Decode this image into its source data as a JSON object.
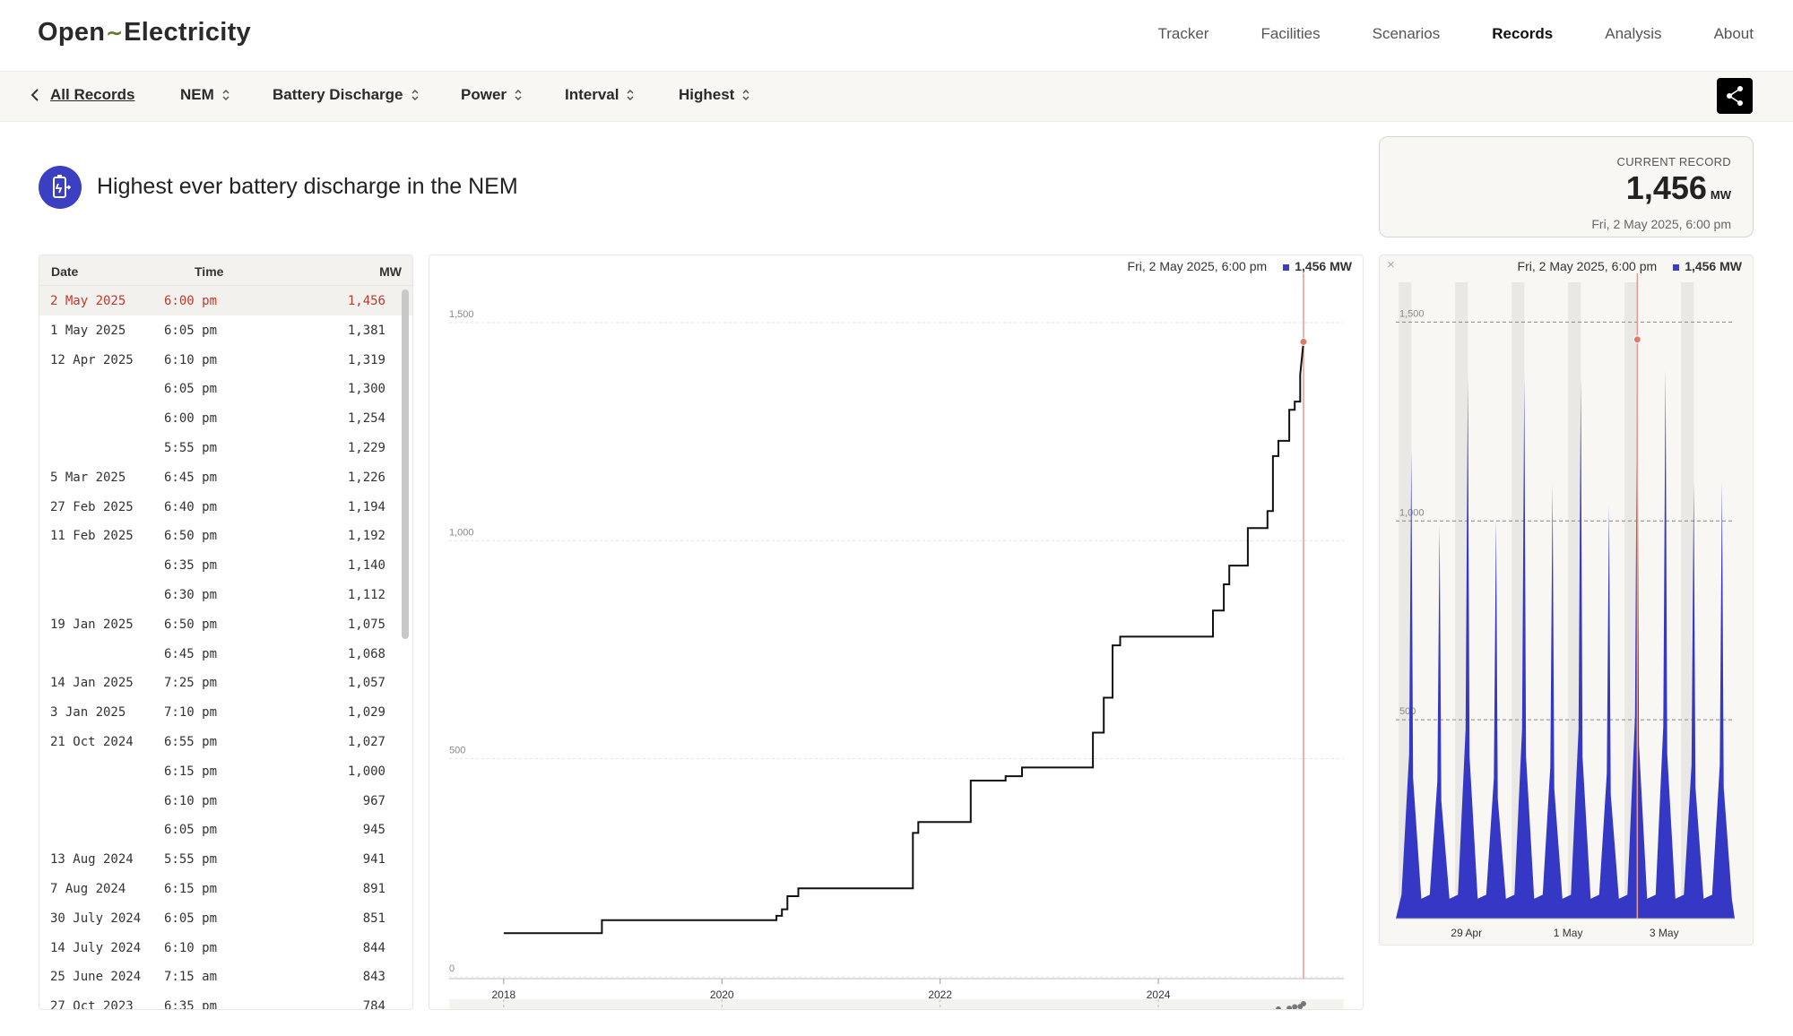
{
  "nav": {
    "logo_left": "Open",
    "logo_right": "Electricity",
    "links": [
      "Tracker",
      "Facilities",
      "Scenarios",
      "Records",
      "Analysis",
      "About"
    ],
    "active": "Records"
  },
  "filters": {
    "back_label": "All Records",
    "region": "NEM",
    "fueltech": "Battery Discharge",
    "metric": "Power",
    "period": "Interval",
    "aggregate": "Highest"
  },
  "header": {
    "title": "Highest ever battery discharge in the NEM",
    "current_label": "CURRENT RECORD",
    "current_value": "1,456",
    "current_unit": "MW",
    "current_date": "Fri, 2 May 2025, 6:00 pm"
  },
  "table": {
    "columns": [
      "Date",
      "Time",
      "MW"
    ],
    "rows": [
      {
        "date": "2 May 2025",
        "time": "6:00 pm",
        "mw": "1,456"
      },
      {
        "date": "1 May 2025",
        "time": "6:05 pm",
        "mw": "1,381"
      },
      {
        "date": "12 Apr 2025",
        "time": "6:10 pm",
        "mw": "1,319"
      },
      {
        "date": "",
        "time": "6:05 pm",
        "mw": "1,300"
      },
      {
        "date": "",
        "time": "6:00 pm",
        "mw": "1,254"
      },
      {
        "date": "",
        "time": "5:55 pm",
        "mw": "1,229"
      },
      {
        "date": "5 Mar 2025",
        "time": "6:45 pm",
        "mw": "1,226"
      },
      {
        "date": "27 Feb 2025",
        "time": "6:40 pm",
        "mw": "1,194"
      },
      {
        "date": "11 Feb 2025",
        "time": "6:50 pm",
        "mw": "1,192"
      },
      {
        "date": "",
        "time": "6:35 pm",
        "mw": "1,140"
      },
      {
        "date": "",
        "time": "6:30 pm",
        "mw": "1,112"
      },
      {
        "date": "19 Jan 2025",
        "time": "6:50 pm",
        "mw": "1,075"
      },
      {
        "date": "",
        "time": "6:45 pm",
        "mw": "1,068"
      },
      {
        "date": "14 Jan 2025",
        "time": "7:25 pm",
        "mw": "1,057"
      },
      {
        "date": "3 Jan 2025",
        "time": "7:10 pm",
        "mw": "1,029"
      },
      {
        "date": "21 Oct 2024",
        "time": "6:55 pm",
        "mw": "1,027"
      },
      {
        "date": "",
        "time": "6:15 pm",
        "mw": "1,000"
      },
      {
        "date": "",
        "time": "6:10 pm",
        "mw": "967"
      },
      {
        "date": "",
        "time": "6:05 pm",
        "mw": "945"
      },
      {
        "date": "13 Aug 2024",
        "time": "5:55 pm",
        "mw": "941"
      },
      {
        "date": "7 Aug 2024",
        "time": "6:15 pm",
        "mw": "891"
      },
      {
        "date": "30 July 2024",
        "time": "6:05 pm",
        "mw": "851"
      },
      {
        "date": "14 July 2024",
        "time": "6:10 pm",
        "mw": "844"
      },
      {
        "date": "25 June 2024",
        "time": "7:15 am",
        "mw": "843"
      },
      {
        "date": "27 Oct 2023",
        "time": "6:35 pm",
        "mw": "784"
      }
    ]
  },
  "main_chart": {
    "tooltip_date": "Fri, 2 May 2025, 6:00 pm",
    "tooltip_value": "1,456 MW"
  },
  "side_chart": {
    "tooltip_date": "Fri, 2 May 2025, 6:00 pm",
    "tooltip_value": "1,456 MW"
  },
  "chart_data": [
    {
      "type": "line",
      "step": true,
      "ylim": [
        0,
        1500
      ],
      "yticks": [
        "0",
        "500",
        "1,000",
        "1,500"
      ],
      "xlim": [
        2017.5,
        2025.7
      ],
      "xticks": [
        "2018",
        "2020",
        "2022",
        "2024"
      ],
      "x": [
        2018.0,
        2018.9,
        2018.9,
        2020.5,
        2020.5,
        2020.55,
        2020.55,
        2020.6,
        2020.6,
        2020.7,
        2020.7,
        2021.75,
        2021.75,
        2021.8,
        2021.8,
        2022.28,
        2022.28,
        2022.6,
        2022.6,
        2022.75,
        2022.75,
        2023.4,
        2023.4,
        2023.5,
        2023.5,
        2023.58,
        2023.58,
        2023.65,
        2023.65,
        2024.5,
        2024.5,
        2024.6,
        2024.6,
        2024.65,
        2024.65,
        2024.82,
        2024.82,
        2025.0,
        2025.0,
        2025.05,
        2025.05,
        2025.1,
        2025.1,
        2025.2,
        2025.2,
        2025.25,
        2025.25,
        2025.3,
        2025.3,
        2025.33
      ],
      "y": [
        100,
        100,
        130,
        130,
        140,
        140,
        155,
        155,
        185,
        185,
        203,
        203,
        330,
        330,
        355,
        355,
        450,
        450,
        460,
        460,
        480,
        480,
        560,
        560,
        640,
        640,
        760,
        760,
        780,
        780,
        840,
        840,
        900,
        900,
        943,
        943,
        1029,
        1029,
        1068,
        1068,
        1194,
        1194,
        1229,
        1229,
        1300,
        1300,
        1319,
        1319,
        1381,
        1456
      ],
      "record": {
        "x": 2025.33,
        "y": 1456
      }
    },
    {
      "type": "area",
      "ylim": [
        0,
        1600
      ],
      "yticks": [
        "500",
        "1,000",
        "1,500"
      ],
      "xticks": [
        "29 Apr",
        "1 May",
        "3 May"
      ],
      "peaks": [
        1180,
        990,
        1360,
        1005,
        1360,
        1090,
        1360,
        1040,
        1456,
        1380,
        1100,
        1100
      ],
      "record": {
        "index": 8,
        "y": 1456
      }
    }
  ]
}
